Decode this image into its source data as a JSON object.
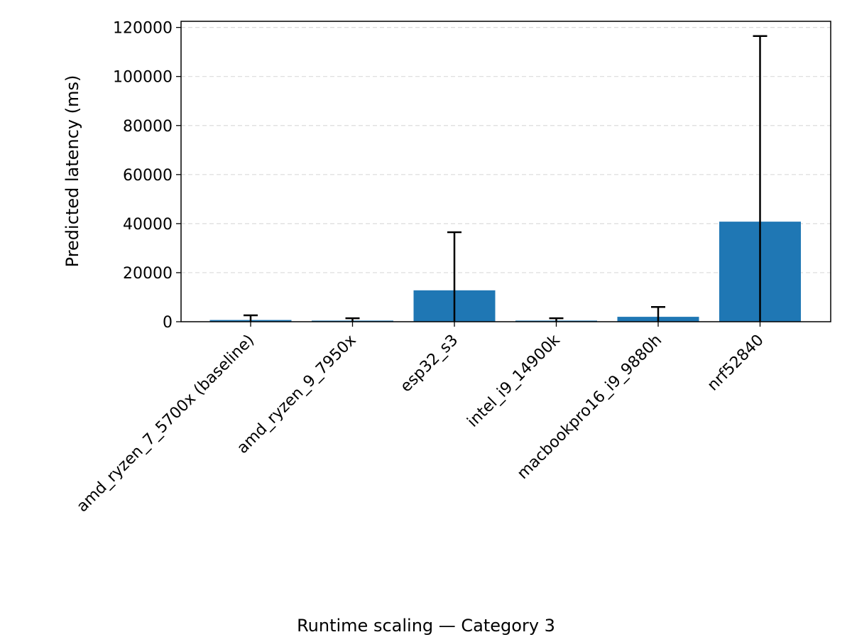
{
  "chart_data": {
    "type": "bar",
    "title": "Runtime scaling — Category 3",
    "xlabel": "",
    "ylabel": "Predicted latency (ms)",
    "ylim": [
      0,
      122500
    ],
    "yticks": [
      0,
      20000,
      40000,
      60000,
      80000,
      100000,
      120000
    ],
    "grid": "y-dashed",
    "bar_color": "#1f77b4",
    "errorbar_color": "#000000",
    "categories": [
      "amd_ryzen_7_5700x (baseline)",
      "amd_ryzen_9_7950x",
      "esp32_s3",
      "intel_i9_14900k",
      "macbookpro16_i9_9880h",
      "nrf52840"
    ],
    "values": [
      700,
      450,
      12800,
      450,
      2000,
      40800
    ],
    "error_upper": [
      2600,
      1400,
      36500,
      1400,
      6000,
      116500
    ],
    "error_lower": [
      0,
      0,
      0,
      0,
      0,
      0
    ]
  }
}
